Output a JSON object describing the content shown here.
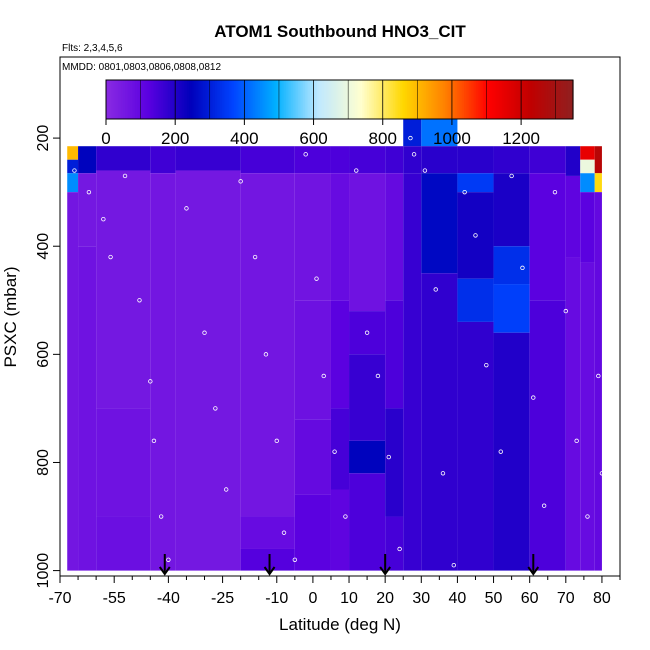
{
  "chart_data": {
    "type": "heatmap",
    "title": "ATOM1 Southbound HNO3_CIT",
    "flights_note": "Flts: 2,3,4,5,6",
    "dates_note": "MMDD: 0801,0803,0806,0808,0812",
    "xlabel": "Latitude (deg N)",
    "ylabel": "PSXC (mbar)",
    "xlim": [
      -70,
      85
    ],
    "ylim": [
      1010,
      50
    ],
    "x_ticks": [
      -70,
      -55,
      -40,
      -25,
      -10,
      0,
      10,
      20,
      30,
      40,
      50,
      60,
      70,
      80
    ],
    "x_tick_labels": [
      "-70",
      "-55",
      "-40",
      "-25",
      "-10",
      "0",
      "10",
      "20",
      "30",
      "40",
      "50",
      "60",
      "70",
      "80"
    ],
    "y_ticks": [
      200,
      400,
      600,
      800,
      1000
    ],
    "y_tick_labels": [
      "200",
      "400",
      "600",
      "800",
      "1000"
    ],
    "colorbar": {
      "range": [
        0,
        1350
      ],
      "ticks": [
        0,
        200,
        400,
        600,
        800,
        1000,
        1200
      ],
      "tick_labels": [
        "0",
        "200",
        "400",
        "600",
        "800",
        "1000",
        "1200"
      ],
      "colors": [
        "#8a2be2",
        "#5a00e0",
        "#0000bb",
        "#0044ff",
        "#00b0ff",
        "#bfe8ff",
        "#ffffd0",
        "#ffd700",
        "#ff7f00",
        "#ff0000",
        "#c00000",
        "#902020"
      ]
    },
    "profile_markers_lat": [
      -41,
      -12,
      20,
      61
    ],
    "profiles": [
      {
        "lat_min": -68,
        "lat_max": -65,
        "levels": [
          [
            215,
            240,
            900
          ],
          [
            240,
            265,
            300
          ],
          [
            265,
            300,
            450
          ],
          [
            300,
            1000,
            60
          ]
        ]
      },
      {
        "lat_min": -65,
        "lat_max": -60,
        "levels": [
          [
            215,
            265,
            250
          ],
          [
            265,
            400,
            55
          ],
          [
            400,
            1000,
            70
          ]
        ]
      },
      {
        "lat_min": -60,
        "lat_max": -45,
        "levels": [
          [
            215,
            260,
            180
          ],
          [
            260,
            700,
            55
          ],
          [
            700,
            900,
            70
          ],
          [
            900,
            1000,
            80
          ]
        ]
      },
      {
        "lat_min": -45,
        "lat_max": -38,
        "levels": [
          [
            215,
            265,
            160
          ],
          [
            265,
            1000,
            60
          ]
        ]
      },
      {
        "lat_min": -38,
        "lat_max": -20,
        "levels": [
          [
            215,
            260,
            170
          ],
          [
            260,
            1000,
            55
          ]
        ]
      },
      {
        "lat_min": -20,
        "lat_max": -5,
        "levels": [
          [
            215,
            265,
            150
          ],
          [
            265,
            900,
            60
          ],
          [
            900,
            960,
            90
          ],
          [
            960,
            1000,
            130
          ]
        ]
      },
      {
        "lat_min": -5,
        "lat_max": 5,
        "levels": [
          [
            215,
            265,
            140
          ],
          [
            265,
            500,
            65
          ],
          [
            500,
            720,
            75
          ],
          [
            720,
            860,
            95
          ],
          [
            860,
            1000,
            120
          ]
        ]
      },
      {
        "lat_min": 5,
        "lat_max": 10,
        "levels": [
          [
            215,
            265,
            140
          ],
          [
            265,
            500,
            90
          ],
          [
            500,
            700,
            120
          ],
          [
            700,
            850,
            150
          ],
          [
            850,
            1000,
            110
          ]
        ]
      },
      {
        "lat_min": 10,
        "lat_max": 20,
        "levels": [
          [
            215,
            265,
            150
          ],
          [
            265,
            520,
            70
          ],
          [
            520,
            600,
            140
          ],
          [
            600,
            760,
            170
          ],
          [
            760,
            820,
            250
          ],
          [
            820,
            1000,
            140
          ]
        ]
      },
      {
        "lat_min": 20,
        "lat_max": 25,
        "levels": [
          [
            215,
            265,
            160
          ],
          [
            265,
            500,
            95
          ],
          [
            500,
            700,
            140
          ],
          [
            700,
            900,
            190
          ],
          [
            900,
            1000,
            150
          ]
        ]
      },
      {
        "lat_min": 25,
        "lat_max": 30,
        "levels": [
          [
            165,
            215,
            300
          ],
          [
            215,
            265,
            180
          ],
          [
            265,
            1000,
            170
          ]
        ]
      },
      {
        "lat_min": 30,
        "lat_max": 40,
        "levels": [
          [
            165,
            215,
            420
          ],
          [
            215,
            265,
            190
          ],
          [
            265,
            450,
            260
          ],
          [
            450,
            1000,
            180
          ]
        ]
      },
      {
        "lat_min": 40,
        "lat_max": 50,
        "levels": [
          [
            215,
            265,
            190
          ],
          [
            265,
            300,
            350
          ],
          [
            300,
            460,
            220
          ],
          [
            460,
            540,
            330
          ],
          [
            540,
            1000,
            180
          ]
        ]
      },
      {
        "lat_min": 50,
        "lat_max": 60,
        "levels": [
          [
            215,
            265,
            180
          ],
          [
            265,
            400,
            210
          ],
          [
            400,
            470,
            330
          ],
          [
            470,
            560,
            360
          ],
          [
            560,
            1000,
            200
          ]
        ]
      },
      {
        "lat_min": 60,
        "lat_max": 70,
        "levels": [
          [
            215,
            265,
            160
          ],
          [
            265,
            500,
            120
          ],
          [
            500,
            1000,
            140
          ]
        ]
      },
      {
        "lat_min": 70,
        "lat_max": 74,
        "levels": [
          [
            215,
            270,
            200
          ],
          [
            270,
            420,
            110
          ],
          [
            420,
            1000,
            90
          ]
        ]
      },
      {
        "lat_min": 74,
        "lat_max": 78,
        "levels": [
          [
            215,
            240,
            1150
          ],
          [
            240,
            265,
            700
          ],
          [
            265,
            300,
            450
          ],
          [
            300,
            430,
            120
          ],
          [
            430,
            1000,
            90
          ]
        ]
      },
      {
        "lat_min": 78,
        "lat_max": 80,
        "levels": [
          [
            215,
            265,
            1250
          ],
          [
            265,
            300,
            850
          ],
          [
            300,
            1000,
            100
          ]
        ]
      }
    ],
    "sample_points": [
      [
        -66,
        260
      ],
      [
        -62,
        300
      ],
      [
        -58,
        350
      ],
      [
        -56,
        420
      ],
      [
        -52,
        270
      ],
      [
        -48,
        500
      ],
      [
        -45,
        650
      ],
      [
        -44,
        760
      ],
      [
        -42,
        900
      ],
      [
        -40,
        980
      ],
      [
        -35,
        330
      ],
      [
        -30,
        560
      ],
      [
        -27,
        700
      ],
      [
        -24,
        850
      ],
      [
        -20,
        280
      ],
      [
        -16,
        420
      ],
      [
        -13,
        600
      ],
      [
        -10,
        760
      ],
      [
        -8,
        930
      ],
      [
        -5,
        980
      ],
      [
        -2,
        230
      ],
      [
        1,
        460
      ],
      [
        3,
        640
      ],
      [
        6,
        780
      ],
      [
        9,
        900
      ],
      [
        12,
        260
      ],
      [
        15,
        560
      ],
      [
        18,
        640
      ],
      [
        21,
        790
      ],
      [
        24,
        960
      ],
      [
        27,
        200
      ],
      [
        28,
        230
      ],
      [
        31,
        260
      ],
      [
        34,
        480
      ],
      [
        36,
        820
      ],
      [
        39,
        990
      ],
      [
        42,
        300
      ],
      [
        45,
        380
      ],
      [
        48,
        620
      ],
      [
        52,
        780
      ],
      [
        55,
        270
      ],
      [
        58,
        440
      ],
      [
        61,
        680
      ],
      [
        64,
        880
      ],
      [
        67,
        300
      ],
      [
        70,
        520
      ],
      [
        73,
        760
      ],
      [
        76,
        900
      ],
      [
        79,
        640
      ],
      [
        80,
        820
      ]
    ]
  }
}
